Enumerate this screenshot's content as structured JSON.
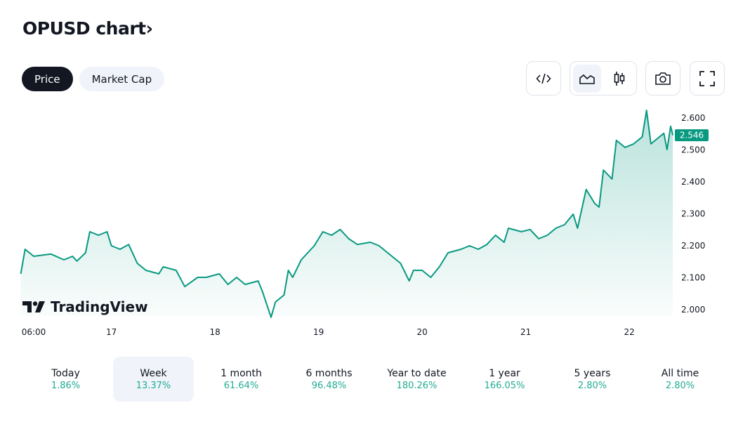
{
  "header": {
    "title": "OPUSD chart",
    "chevron": "›"
  },
  "tabs": [
    {
      "label": "Price",
      "active": true
    },
    {
      "label": "Market Cap",
      "active": false
    }
  ],
  "toolbar": {
    "icons": [
      "embed-code-icon",
      "area-chart-icon",
      "candlestick-icon",
      "camera-icon",
      "fullscreen-icon"
    ]
  },
  "watermark": "TradingView",
  "colors": {
    "line": "#089981",
    "label_bg": "#089981",
    "positive": "#22ab94"
  },
  "chart_data": {
    "type": "area",
    "ylim": [
      1.96,
      2.64
    ],
    "y_ticks": [
      "2.000",
      "2.100",
      "2.200",
      "2.300",
      "2.400",
      "2.500",
      "2.600"
    ],
    "x_ticks": [
      {
        "label": "06:00",
        "t": "16 06:00"
      },
      {
        "label": "17",
        "t": "17 00:00"
      },
      {
        "label": "18",
        "t": "18 00:00"
      },
      {
        "label": "19",
        "t": "19 00:00"
      },
      {
        "label": "20",
        "t": "20 00:00"
      },
      {
        "label": "21",
        "t": "21 00:00"
      },
      {
        "label": "22",
        "t": "22 00:00"
      }
    ],
    "last_price": "2.546",
    "grid": false,
    "points": [
      [
        "16 03:00",
        2.112
      ],
      [
        "16 04:00",
        2.189
      ],
      [
        "16 06:00",
        2.167
      ],
      [
        "16 10:00",
        2.174
      ],
      [
        "16 13:00",
        2.156
      ],
      [
        "16 15:00",
        2.167
      ],
      [
        "16 16:00",
        2.152
      ],
      [
        "16 18:00",
        2.178
      ],
      [
        "16 19:00",
        2.244
      ],
      [
        "16 21:00",
        2.233
      ],
      [
        "16 23:00",
        2.244
      ],
      [
        "17 00:00",
        2.2
      ],
      [
        "17 02:00",
        2.189
      ],
      [
        "17 04:00",
        2.204
      ],
      [
        "17 06:00",
        2.145
      ],
      [
        "17 08:00",
        2.123
      ],
      [
        "17 11:00",
        2.112
      ],
      [
        "17 12:00",
        2.134
      ],
      [
        "17 15:00",
        2.123
      ],
      [
        "17 17:00",
        2.072
      ],
      [
        "17 20:00",
        2.101
      ],
      [
        "17 22:00",
        2.101
      ],
      [
        "18 01:00",
        2.112
      ],
      [
        "18 03:00",
        2.079
      ],
      [
        "18 05:00",
        2.101
      ],
      [
        "18 07:00",
        2.079
      ],
      [
        "18 10:00",
        2.09
      ],
      [
        "18 11:00",
        2.057
      ],
      [
        "18 13:00",
        1.976
      ],
      [
        "18 14:00",
        2.024
      ],
      [
        "18 16:00",
        2.046
      ],
      [
        "18 17:00",
        2.123
      ],
      [
        "18 18:00",
        2.101
      ],
      [
        "18 20:00",
        2.156
      ],
      [
        "18 23:00",
        2.2
      ],
      [
        "19 01:00",
        2.244
      ],
      [
        "19 03:00",
        2.233
      ],
      [
        "19 05:00",
        2.251
      ],
      [
        "19 07:00",
        2.222
      ],
      [
        "19 09:00",
        2.204
      ],
      [
        "19 12:00",
        2.211
      ],
      [
        "19 14:00",
        2.2
      ],
      [
        "19 16:00",
        2.178
      ],
      [
        "19 19:00",
        2.145
      ],
      [
        "19 21:00",
        2.09
      ],
      [
        "19 22:00",
        2.123
      ],
      [
        "20 00:00",
        2.123
      ],
      [
        "20 02:00",
        2.101
      ],
      [
        "20 04:00",
        2.134
      ],
      [
        "20 06:00",
        2.178
      ],
      [
        "20 09:00",
        2.189
      ],
      [
        "20 11:00",
        2.2
      ],
      [
        "20 13:00",
        2.189
      ],
      [
        "20 15:00",
        2.204
      ],
      [
        "20 17:00",
        2.233
      ],
      [
        "20 19:00",
        2.211
      ],
      [
        "20 20:00",
        2.255
      ],
      [
        "20 23:00",
        2.244
      ],
      [
        "21 01:00",
        2.251
      ],
      [
        "21 03:00",
        2.222
      ],
      [
        "21 05:00",
        2.233
      ],
      [
        "21 07:00",
        2.255
      ],
      [
        "21 09:00",
        2.266
      ],
      [
        "21 11:00",
        2.299
      ],
      [
        "21 12:00",
        2.255
      ],
      [
        "21 14:00",
        2.376
      ],
      [
        "21 16:00",
        2.332
      ],
      [
        "21 17:00",
        2.321
      ],
      [
        "21 18:00",
        2.437
      ],
      [
        "21 20:00",
        2.409
      ],
      [
        "21 21:00",
        2.53
      ],
      [
        "21 23:00",
        2.508
      ],
      [
        "22 01:00",
        2.519
      ],
      [
        "22 02:00",
        2.53
      ],
      [
        "22 03:00",
        2.541
      ],
      [
        "22 04:00",
        2.624
      ],
      [
        "22 05:00",
        2.519
      ],
      [
        "22 06:00",
        2.53
      ],
      [
        "22 08:00",
        2.552
      ],
      [
        "22 08:45",
        2.501
      ],
      [
        "22 09:35",
        2.574
      ],
      [
        "22 10:05",
        2.546
      ]
    ]
  },
  "stats": [
    {
      "label": "Today",
      "value": "1.86%"
    },
    {
      "label": "Week",
      "value": "13.37%",
      "selected": true
    },
    {
      "label": "1 month",
      "value": "61.64%"
    },
    {
      "label": "6 months",
      "value": "96.48%"
    },
    {
      "label": "Year to date",
      "value": "180.26%"
    },
    {
      "label": "1 year",
      "value": "166.05%"
    },
    {
      "label": "5 years",
      "value": "2.80%"
    },
    {
      "label": "All time",
      "value": "2.80%"
    }
  ]
}
